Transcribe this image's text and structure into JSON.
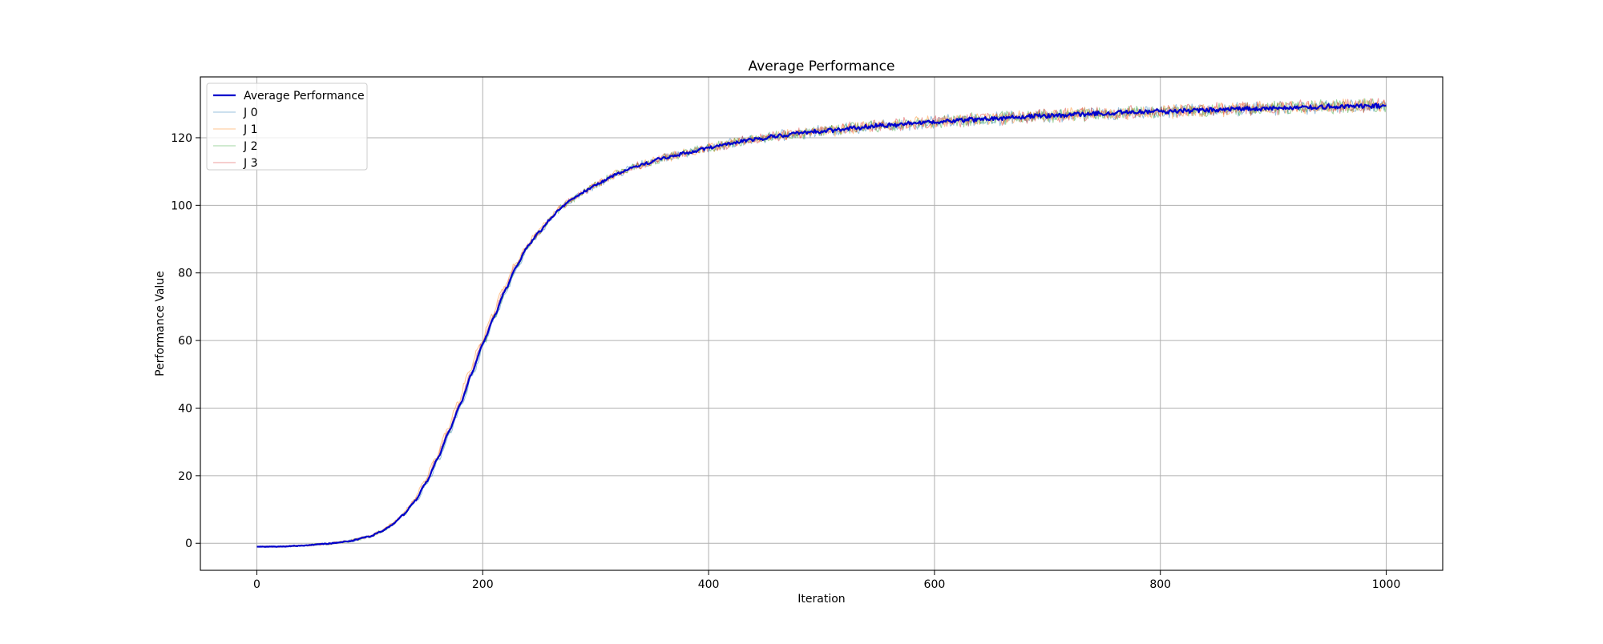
{
  "chart_data": {
    "type": "line",
    "title": "Average Performance",
    "xlabel": "Iteration",
    "ylabel": "Performance Value",
    "xlim": [
      -50,
      1050
    ],
    "ylim": [
      -8,
      138
    ],
    "x_ticks": [
      0,
      200,
      400,
      600,
      800,
      1000
    ],
    "y_ticks": [
      0,
      20,
      40,
      60,
      80,
      100,
      120
    ],
    "grid": true,
    "legend_position": "upper-left",
    "x_range": [
      0,
      1000
    ],
    "anchor_points": [
      [
        0,
        -1
      ],
      [
        20,
        -1
      ],
      [
        40,
        -0.7
      ],
      [
        60,
        -0.2
      ],
      [
        80,
        0.5
      ],
      [
        100,
        2
      ],
      [
        110,
        3.5
      ],
      [
        120,
        5.5
      ],
      [
        130,
        8.5
      ],
      [
        140,
        12.5
      ],
      [
        150,
        18
      ],
      [
        160,
        25
      ],
      [
        170,
        33
      ],
      [
        180,
        41
      ],
      [
        190,
        50
      ],
      [
        200,
        59
      ],
      [
        210,
        67
      ],
      [
        220,
        75
      ],
      [
        230,
        82
      ],
      [
        240,
        88
      ],
      [
        250,
        92
      ],
      [
        260,
        96
      ],
      [
        270,
        99.5
      ],
      [
        280,
        102
      ],
      [
        290,
        104
      ],
      [
        300,
        106
      ],
      [
        320,
        109.5
      ],
      [
        340,
        112
      ],
      [
        360,
        114
      ],
      [
        380,
        115.5
      ],
      [
        400,
        117
      ],
      [
        420,
        118.3
      ],
      [
        440,
        119.5
      ],
      [
        460,
        120.5
      ],
      [
        480,
        121.3
      ],
      [
        500,
        122
      ],
      [
        550,
        123.5
      ],
      [
        600,
        124.7
      ],
      [
        650,
        125.7
      ],
      [
        700,
        126.5
      ],
      [
        750,
        127.2
      ],
      [
        800,
        127.8
      ],
      [
        850,
        128.3
      ],
      [
        900,
        128.8
      ],
      [
        950,
        129.2
      ],
      [
        1000,
        129.5
      ]
    ],
    "series": [
      {
        "name": "Average Performance",
        "color": "#0000cc",
        "width": 2.2,
        "opacity": 1.0,
        "noise": 0.35,
        "offset": 0
      },
      {
        "name": "J 0",
        "color": "#1f77b4",
        "width": 1.1,
        "opacity": 0.45,
        "noise": 1.0,
        "offset": 1.5
      },
      {
        "name": "J 1",
        "color": "#ff7f0e",
        "width": 1.1,
        "opacity": 0.45,
        "noise": 1.0,
        "offset": -3
      },
      {
        "name": "J 2",
        "color": "#2ca02c",
        "width": 1.1,
        "opacity": 0.45,
        "noise": 1.0,
        "offset": 0.5
      },
      {
        "name": "J 3",
        "color": "#d62728",
        "width": 1.1,
        "opacity": 0.45,
        "noise": 1.0,
        "offset": -1
      }
    ]
  }
}
